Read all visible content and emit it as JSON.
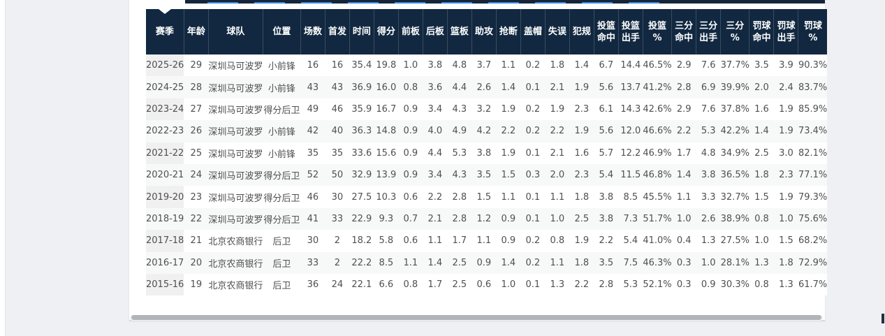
{
  "colors": {
    "page_bg": "#eef0f4",
    "card_bg": "#ffffff",
    "header_bg": "#112840",
    "header_text": "#ffffff",
    "accent_blue": "#3d8be0",
    "zebra_row": "#f7f8f8",
    "season_column_bg": "#f0f0f1",
    "body_text": "#4f4f4f",
    "scroll_thumb": "#b1b4b8"
  },
  "table": {
    "columns": [
      [
        "赛季"
      ],
      [
        "年龄"
      ],
      [
        "球队"
      ],
      [
        "位置"
      ],
      [
        "场数"
      ],
      [
        "首发"
      ],
      [
        "时间"
      ],
      [
        "得分"
      ],
      [
        "前板"
      ],
      [
        "后板"
      ],
      [
        "篮板"
      ],
      [
        "助攻"
      ],
      [
        "抢断"
      ],
      [
        "盖帽"
      ],
      [
        "失误"
      ],
      [
        "犯规"
      ],
      [
        "投篮",
        "命中"
      ],
      [
        "投篮",
        "出手"
      ],
      [
        "投篮",
        "%"
      ],
      [
        "三分",
        "命中"
      ],
      [
        "三分",
        "出手"
      ],
      [
        "三分",
        "%"
      ],
      [
        "罚球",
        "命中"
      ],
      [
        "罚球",
        "出手"
      ],
      [
        "罚球",
        "%"
      ]
    ],
    "rows": [
      [
        "2025-26",
        "29",
        "深圳马可波罗",
        "小前锋",
        "16",
        "16",
        "35.4",
        "19.8",
        "1.0",
        "3.8",
        "4.8",
        "3.7",
        "1.1",
        "0.2",
        "1.8",
        "1.4",
        "6.7",
        "14.4",
        "46.5%",
        "2.9",
        "7.6",
        "37.7%",
        "3.5",
        "3.9",
        "90.3%"
      ],
      [
        "2024-25",
        "28",
        "深圳马可波罗",
        "小前锋",
        "43",
        "43",
        "36.9",
        "16.0",
        "0.8",
        "3.6",
        "4.4",
        "2.6",
        "1.4",
        "0.1",
        "2.1",
        "1.9",
        "5.6",
        "13.7",
        "41.2%",
        "2.8",
        "6.9",
        "39.9%",
        "2.0",
        "2.4",
        "83.7%"
      ],
      [
        "2023-24",
        "27",
        "深圳马可波罗",
        "得分后卫",
        "49",
        "46",
        "35.9",
        "16.7",
        "0.9",
        "3.4",
        "4.3",
        "3.2",
        "1.9",
        "0.2",
        "1.9",
        "2.3",
        "6.1",
        "14.3",
        "42.6%",
        "2.9",
        "7.6",
        "37.8%",
        "1.6",
        "1.9",
        "85.9%"
      ],
      [
        "2022-23",
        "26",
        "深圳马可波罗",
        "小前锋",
        "42",
        "40",
        "36.3",
        "14.8",
        "0.9",
        "4.0",
        "4.9",
        "4.2",
        "2.2",
        "0.2",
        "2.2",
        "1.9",
        "5.6",
        "12.0",
        "46.6%",
        "2.2",
        "5.3",
        "42.2%",
        "1.4",
        "1.9",
        "73.4%"
      ],
      [
        "2021-22",
        "25",
        "深圳马可波罗",
        "小前锋",
        "35",
        "35",
        "33.6",
        "15.6",
        "0.9",
        "4.4",
        "5.3",
        "3.8",
        "1.9",
        "0.1",
        "2.1",
        "1.6",
        "5.7",
        "12.2",
        "46.9%",
        "1.7",
        "4.8",
        "34.9%",
        "2.5",
        "3.0",
        "82.1%"
      ],
      [
        "2020-21",
        "24",
        "深圳马可波罗",
        "得分后卫",
        "52",
        "50",
        "32.9",
        "13.9",
        "0.9",
        "3.4",
        "4.3",
        "3.5",
        "1.5",
        "0.3",
        "2.0",
        "2.3",
        "5.4",
        "11.5",
        "46.8%",
        "1.4",
        "3.8",
        "36.5%",
        "1.8",
        "2.3",
        "77.1%"
      ],
      [
        "2019-20",
        "23",
        "深圳马可波罗",
        "得分后卫",
        "46",
        "30",
        "27.5",
        "10.3",
        "0.6",
        "2.2",
        "2.8",
        "1.5",
        "1.1",
        "0.1",
        "1.1",
        "1.8",
        "3.8",
        "8.5",
        "45.5%",
        "1.1",
        "3.3",
        "32.7%",
        "1.5",
        "1.9",
        "79.3%"
      ],
      [
        "2018-19",
        "22",
        "深圳马可波罗",
        "得分后卫",
        "41",
        "33",
        "22.9",
        "9.3",
        "0.7",
        "2.1",
        "2.8",
        "1.2",
        "0.9",
        "0.1",
        "1.0",
        "2.5",
        "3.8",
        "7.3",
        "51.7%",
        "1.0",
        "2.6",
        "38.9%",
        "0.8",
        "1.0",
        "75.6%"
      ],
      [
        "2017-18",
        "21",
        "北京农商银行",
        "后卫",
        "30",
        "2",
        "18.2",
        "5.8",
        "0.6",
        "1.1",
        "1.7",
        "1.1",
        "0.9",
        "0.2",
        "0.8",
        "1.9",
        "2.2",
        "5.4",
        "41.0%",
        "0.4",
        "1.3",
        "27.5%",
        "1.0",
        "1.5",
        "68.2%"
      ],
      [
        "2016-17",
        "20",
        "北京农商银行",
        "后卫",
        "33",
        "2",
        "22.2",
        "8.5",
        "1.1",
        "1.4",
        "2.5",
        "0.9",
        "1.4",
        "0.2",
        "1.1",
        "1.8",
        "3.5",
        "7.5",
        "46.3%",
        "0.3",
        "1.0",
        "28.1%",
        "1.3",
        "1.8",
        "72.9%"
      ],
      [
        "2015-16",
        "19",
        "北京农商银行",
        "后卫",
        "36",
        "24",
        "22.1",
        "6.6",
        "0.8",
        "1.7",
        "2.5",
        "0.6",
        "1.0",
        "0.1",
        "1.3",
        "2.2",
        "2.8",
        "5.3",
        "52.1%",
        "0.3",
        "0.9",
        "30.3%",
        "0.8",
        "1.3",
        "61.7%"
      ]
    ]
  }
}
